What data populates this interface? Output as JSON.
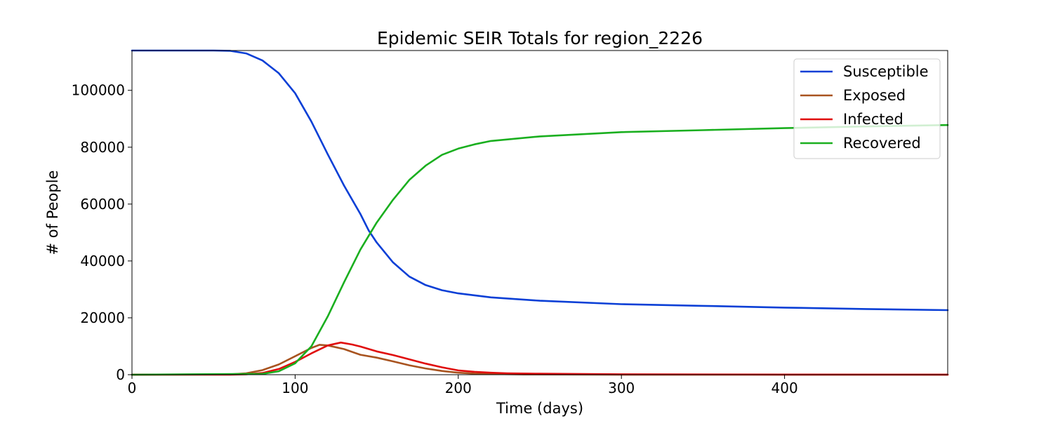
{
  "chart_data": {
    "type": "line",
    "title": "Epidemic SEIR Totals for region_2226",
    "xlabel": "Time (days)",
    "ylabel": "# of People",
    "xlim": [
      0,
      500
    ],
    "ylim": [
      0,
      114000
    ],
    "xticks": [
      0,
      100,
      200,
      300,
      400
    ],
    "yticks": [
      0,
      20000,
      40000,
      60000,
      80000,
      100000
    ],
    "grid": false,
    "legend_position": "top-right",
    "series": [
      {
        "name": "Susceptible",
        "color": "#0a3fd6",
        "x": [
          0,
          50,
          60,
          70,
          80,
          90,
          100,
          110,
          120,
          130,
          140,
          145,
          150,
          160,
          170,
          180,
          190,
          200,
          220,
          250,
          300,
          350,
          400,
          450,
          500
        ],
        "y": [
          114000,
          114000,
          113900,
          113000,
          110500,
          106000,
          99000,
          89000,
          77500,
          66500,
          56500,
          50800,
          46500,
          39500,
          34500,
          31500,
          29700,
          28600,
          27200,
          26000,
          24800,
          24200,
          23600,
          23100,
          22700
        ]
      },
      {
        "name": "Exposed",
        "color": "#a8531f",
        "x": [
          0,
          60,
          70,
          80,
          90,
          100,
          110,
          115,
          120,
          130,
          140,
          150,
          160,
          170,
          180,
          190,
          200,
          210,
          220,
          240,
          300,
          400,
          500
        ],
        "y": [
          0,
          100,
          500,
          1600,
          3600,
          6500,
          9400,
          10500,
          10300,
          9000,
          7000,
          6000,
          4700,
          3300,
          2200,
          1300,
          700,
          400,
          250,
          100,
          30,
          10,
          5
        ]
      },
      {
        "name": "Infected",
        "color": "#e00d0d",
        "x": [
          0,
          60,
          70,
          80,
          90,
          100,
          110,
          120,
          128,
          135,
          140,
          150,
          160,
          170,
          180,
          190,
          200,
          210,
          220,
          230,
          250,
          300,
          400,
          500
        ],
        "y": [
          0,
          30,
          150,
          600,
          2000,
          4500,
          7500,
          10300,
          11300,
          10600,
          9900,
          8200,
          6900,
          5400,
          3900,
          2600,
          1500,
          1000,
          700,
          500,
          350,
          150,
          50,
          20
        ]
      },
      {
        "name": "Recovered",
        "color": "#1aaf1f",
        "x": [
          0,
          80,
          90,
          100,
          110,
          120,
          130,
          140,
          150,
          160,
          170,
          180,
          190,
          200,
          210,
          220,
          250,
          300,
          350,
          400,
          450,
          500
        ],
        "y": [
          0,
          300,
          1200,
          4000,
          10000,
          20500,
          32500,
          44000,
          53500,
          61500,
          68500,
          73500,
          77300,
          79500,
          81000,
          82200,
          83800,
          85300,
          86000,
          86700,
          87300,
          87800
        ]
      }
    ]
  }
}
